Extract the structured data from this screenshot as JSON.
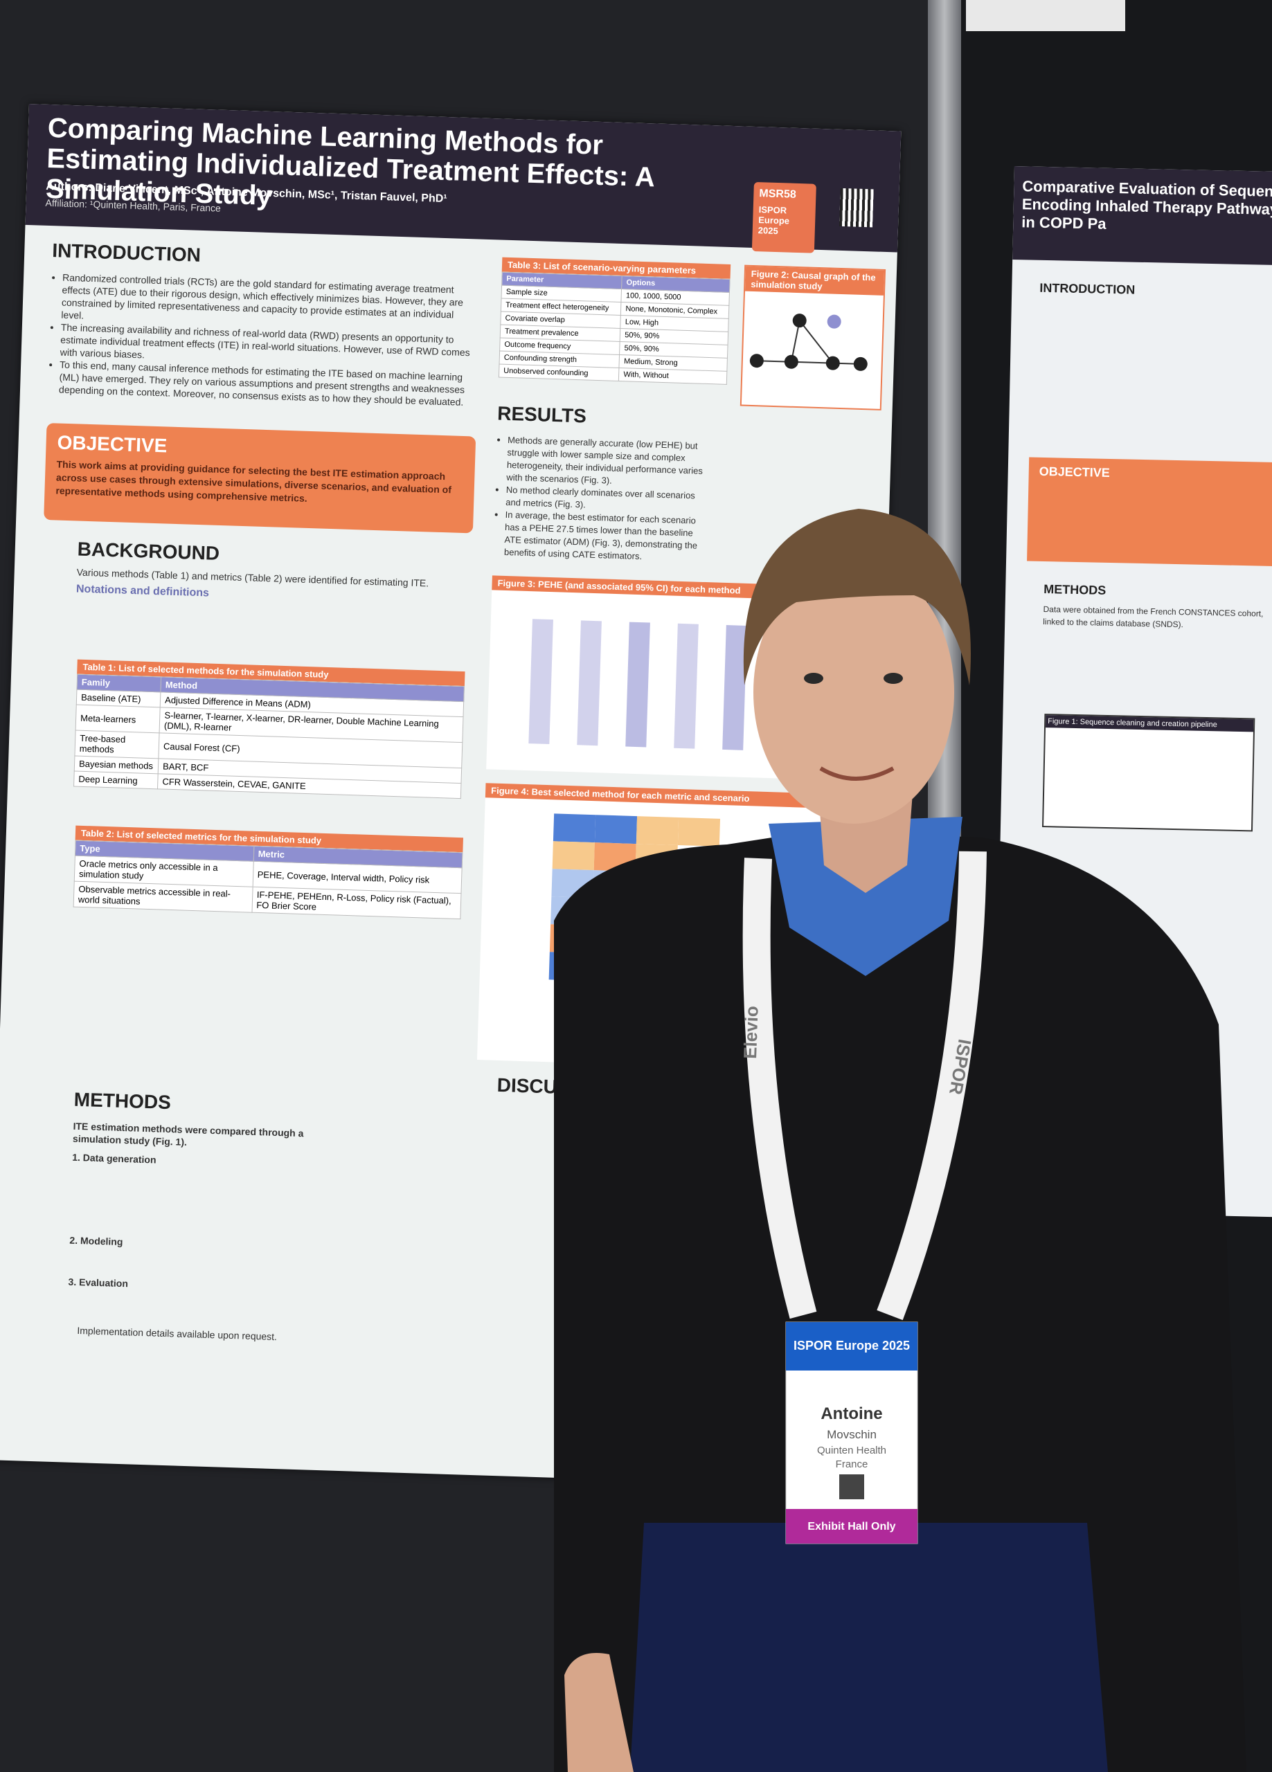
{
  "poster": {
    "title": "Comparing Machine Learning Methods for Estimating Individualized Treatment Effects: A Simulation Study",
    "authors": "Authors: Diane Vincent, MSc¹, Antoine Movschin, MSc¹, Tristan Fauvel, PhD¹",
    "affiliation": "Affiliation: ¹Quinten Health, Paris, France",
    "code": "MSR58",
    "event": "ISPOR Europe 2025",
    "introduction": {
      "heading": "INTRODUCTION",
      "bullets": [
        "Randomized controlled trials (RCTs) are the gold standard for estimating average treatment effects (ATE) due to their rigorous design, which effectively minimizes bias. However, they are constrained by limited representativeness and capacity to provide estimates at an individual level.",
        "The increasing availability and richness of real-world data (RWD) presents an opportunity to estimate individual treatment effects (ITE) in real-world situations. However, use of RWD comes with various biases.",
        "To this end, many causal inference methods for estimating the ITE based on machine learning (ML) have emerged. They rely on various assumptions and present strengths and weaknesses depending on the context. Moreover, no consensus exists as to how they should be evaluated."
      ]
    },
    "objective": {
      "heading": "OBJECTIVE",
      "text": "This work aims at providing guidance for selecting the best ITE estimation approach across use cases through extensive simulations, diverse scenarios, and evaluation of representative methods using comprehensive metrics."
    },
    "background": {
      "heading": "BACKGROUND",
      "text": "Various methods (Table 1) and metrics (Table 2) were identified for estimating ITE.",
      "subheading": "Notations and definitions"
    },
    "table1": {
      "caption": "Table 1: List of selected methods for the simulation study",
      "header": [
        "Family",
        "Method"
      ],
      "rows": [
        [
          "Baseline (ATE)",
          "Adjusted Difference in Means (ADM)"
        ],
        [
          "Meta-learners",
          "S-learner, T-learner, X-learner, DR-learner, Double Machine Learning (DML), R-learner"
        ],
        [
          "Tree-based methods",
          "Causal Forest (CF)"
        ],
        [
          "Bayesian methods",
          "BART, BCF"
        ],
        [
          "Deep Learning",
          "CFR Wasserstein, CEVAE, GANITE"
        ]
      ]
    },
    "table2": {
      "caption": "Table 2: List of selected metrics for the simulation study",
      "header": [
        "Type",
        "Metric"
      ],
      "rows": [
        [
          "Oracle metrics only accessible in a simulation study",
          "PEHE, Coverage, Interval width, Policy risk"
        ],
        [
          "Observable metrics accessible in real-world situations",
          "IF-PEHE, PEHEnn, R-Loss, Policy risk (Factual), FO Brier Score"
        ]
      ]
    },
    "methods": {
      "heading": "METHODS",
      "text": "ITE estimation methods were compared through a simulation study (Fig. 1).",
      "steps": [
        "1. Data generation",
        "2. Modeling",
        "3. Evaluation"
      ],
      "note": "Implementation details available upon request."
    },
    "table3": {
      "caption": "Table 3: List of scenario-varying parameters",
      "header": [
        "Parameter",
        "Options"
      ],
      "rows": [
        [
          "Sample size",
          "100, 1000, 5000"
        ],
        [
          "Treatment effect heterogeneity",
          "None, Monotonic, Complex"
        ],
        [
          "Covariate overlap",
          "Low, High"
        ],
        [
          "Treatment prevalence",
          "50%, 90%"
        ],
        [
          "Outcome frequency",
          "50%, 90%"
        ],
        [
          "Confounding strength",
          "Medium, Strong"
        ],
        [
          "Unobserved confounding",
          "With, Without"
        ]
      ]
    },
    "figure2": "Figure 2: Causal graph of the simulation study",
    "results": {
      "heading": "RESULTS",
      "bullets": [
        "Methods are generally accurate (low PEHE) but struggle with lower sample size and complex heterogeneity, their individual performance varies with the scenarios (Fig. 3).",
        "No method clearly dominates over all scenarios and metrics (Fig. 3).",
        "In average, the best estimator for each scenario has a PEHE 27.5 times lower than the baseline ATE estimator (ADM) (Fig. 3), demonstrating the benefits of using CATE estimators."
      ]
    },
    "figure3": "Figure 3: PEHE (and associated 95% CI) for each method",
    "figure4": "Figure 4: Best selected method for each metric and scenario",
    "discussion": "DISCUS"
  },
  "side_poster": {
    "title": "Comparative Evaluation of Sequence Encoding Inhaled Therapy Pathways in COPD Pa",
    "sections": [
      "INTRODUCTION",
      "OBJECTIVE",
      "METHODS"
    ],
    "methods_text": "Data were obtained from the French CONSTANCES cohort, linked to the claims database (SNDS).",
    "figure": "Figure 1: Sequence cleaning and creation pipeline"
  },
  "name_badge": {
    "event": "ISPOR Europe 2025",
    "first_name": "Antoine",
    "last_name": "Movschin",
    "organization": "Quinten Health",
    "country": "France",
    "footer": "Exhibit Hall Only"
  },
  "lanyard": [
    "Elevio",
    "ISPOR"
  ]
}
